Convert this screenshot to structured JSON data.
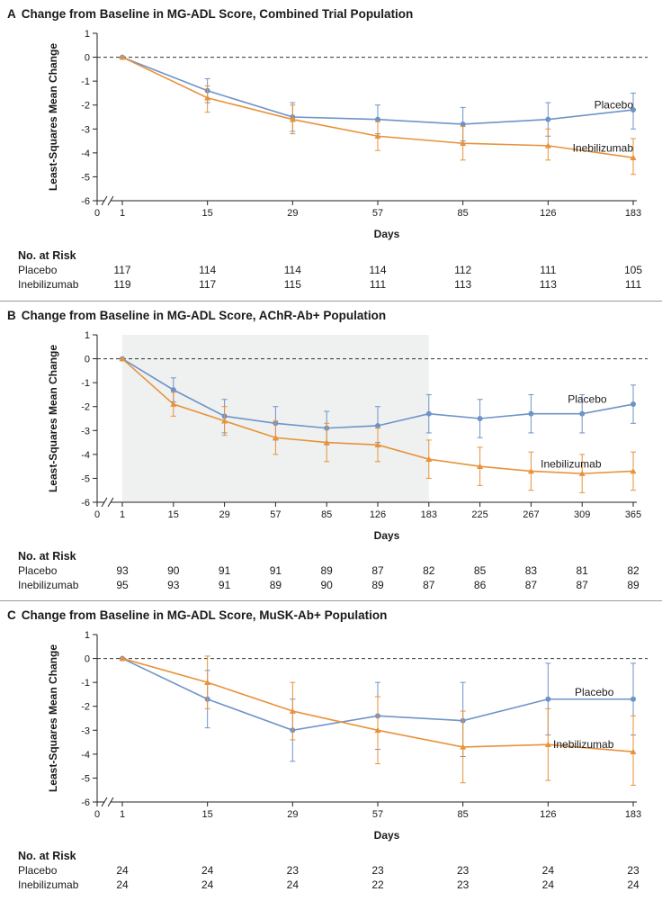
{
  "colors": {
    "placebo": "#6f93c8",
    "inebilizumab": "#e8923a",
    "shade": "#eef1f0",
    "axis": "#222222"
  },
  "common": {
    "ylabel": "Least-Squares Mean Change",
    "xlabel": "Days",
    "risk_title": "No. at Risk",
    "placebo_label": "Placebo",
    "inebilizumab_label": "Inebilizumab"
  },
  "chart_data": [
    {
      "type": "line",
      "letter": "A",
      "title": "Change from Baseline in MG-ADL Score, Combined Trial Population",
      "xlabel": "Days",
      "ylabel": "Least-Squares Mean Change",
      "ylim": [
        -6,
        1
      ],
      "yticks": [
        1,
        0,
        -1,
        -2,
        -3,
        -4,
        -5,
        -6
      ],
      "x": [
        1,
        15,
        29,
        57,
        85,
        126,
        183
      ],
      "x_labels": [
        "1",
        "15",
        "29",
        "57",
        "85",
        "126",
        "183"
      ],
      "zero_label": "0",
      "reference_line": 0,
      "shaded_range": null,
      "series": [
        {
          "name": "Placebo",
          "marker": "circle",
          "values": [
            0,
            -1.4,
            -2.5,
            -2.6,
            -2.8,
            -2.6,
            -2.2
          ],
          "err_low": [
            0,
            -1.9,
            -3.1,
            -3.2,
            -3.5,
            -3.3,
            -3.0
          ],
          "err_high": [
            0,
            -0.9,
            -1.9,
            -2.0,
            -2.1,
            -1.9,
            -1.5
          ]
        },
        {
          "name": "Inebilizumab",
          "marker": "triangle",
          "values": [
            0,
            -1.7,
            -2.6,
            -3.3,
            -3.6,
            -3.7,
            -4.2
          ],
          "err_low": [
            0,
            -2.3,
            -3.2,
            -3.9,
            -4.3,
            -4.3,
            -4.9
          ],
          "err_high": [
            0,
            -1.2,
            -2.0,
            -2.7,
            -2.9,
            -3.0,
            -3.4
          ]
        }
      ],
      "risk": {
        "placebo": [
          "117",
          "114",
          "114",
          "114",
          "112",
          "111",
          "105"
        ],
        "inebilizumab": [
          "119",
          "117",
          "115",
          "111",
          "113",
          "113",
          "111"
        ]
      },
      "annotations": {
        "placebo_day": 183,
        "placebo_y": -2.0,
        "ineb_day": 183,
        "ineb_y": -3.8
      }
    },
    {
      "type": "line",
      "letter": "B",
      "title": "Change from Baseline in MG-ADL Score, AChR-Ab+ Population",
      "xlabel": "Days",
      "ylabel": "Least-Squares Mean Change",
      "ylim": [
        -6,
        1
      ],
      "yticks": [
        1,
        0,
        -1,
        -2,
        -3,
        -4,
        -5,
        -6
      ],
      "x": [
        1,
        15,
        29,
        57,
        85,
        126,
        183,
        225,
        267,
        309,
        365
      ],
      "x_labels": [
        "1",
        "15",
        "29",
        "57",
        "85",
        "126",
        "183",
        "225",
        "267",
        "309",
        "365"
      ],
      "zero_label": "0",
      "reference_line": 0,
      "shaded_range": [
        1,
        183
      ],
      "series": [
        {
          "name": "Placebo",
          "marker": "circle",
          "values": [
            0,
            -1.3,
            -2.4,
            -2.7,
            -2.9,
            -2.8,
            -2.3,
            -2.5,
            -2.3,
            -2.3,
            -1.9
          ],
          "err_low": [
            0,
            -1.8,
            -3.1,
            -3.4,
            -3.6,
            -3.5,
            -3.1,
            -3.3,
            -3.1,
            -3.1,
            -2.7
          ],
          "err_high": [
            0,
            -0.8,
            -1.7,
            -2.0,
            -2.2,
            -2.0,
            -1.5,
            -1.7,
            -1.5,
            -1.5,
            -1.1
          ]
        },
        {
          "name": "Inebilizumab",
          "marker": "triangle",
          "values": [
            0,
            -1.9,
            -2.6,
            -3.3,
            -3.5,
            -3.6,
            -4.2,
            -4.5,
            -4.7,
            -4.8,
            -4.7
          ],
          "err_low": [
            0,
            -2.4,
            -3.2,
            -4.0,
            -4.3,
            -4.3,
            -5.0,
            -5.3,
            -5.5,
            -5.6,
            -5.5
          ],
          "err_high": [
            0,
            -1.4,
            -2.0,
            -2.6,
            -2.7,
            -2.9,
            -3.4,
            -3.7,
            -3.9,
            -4.0,
            -3.9
          ]
        }
      ],
      "risk": {
        "placebo": [
          "93",
          "90",
          "91",
          "91",
          "89",
          "87",
          "82",
          "85",
          "83",
          "81",
          "82"
        ],
        "inebilizumab": [
          "95",
          "93",
          "91",
          "89",
          "90",
          "89",
          "87",
          "86",
          "87",
          "87",
          "89"
        ]
      },
      "annotations": {
        "placebo_day": 336,
        "placebo_y": -1.7,
        "ineb_day": 330,
        "ineb_y": -4.4
      }
    },
    {
      "type": "line",
      "letter": "C",
      "title": "Change from Baseline in MG-ADL Score, MuSK-Ab+ Population",
      "xlabel": "Days",
      "ylabel": "Least-Squares Mean Change",
      "ylim": [
        -6,
        1
      ],
      "yticks": [
        1,
        0,
        -1,
        -2,
        -3,
        -4,
        -5,
        -6
      ],
      "x": [
        1,
        15,
        29,
        57,
        85,
        126,
        183
      ],
      "x_labels": [
        "1",
        "15",
        "29",
        "57",
        "85",
        "126",
        "183"
      ],
      "zero_label": "0",
      "reference_line": 0,
      "shaded_range": null,
      "series": [
        {
          "name": "Placebo",
          "marker": "circle",
          "values": [
            0,
            -1.7,
            -3.0,
            -2.4,
            -2.6,
            -1.7,
            -1.7
          ],
          "err_low": [
            0,
            -2.9,
            -4.3,
            -3.8,
            -4.1,
            -3.2,
            -3.2
          ],
          "err_high": [
            0,
            -0.5,
            -1.7,
            -1.0,
            -1.0,
            -0.2,
            -0.2
          ]
        },
        {
          "name": "Inebilizumab",
          "marker": "triangle",
          "values": [
            0,
            -1.0,
            -2.2,
            -3.0,
            -3.7,
            -3.6,
            -3.9
          ],
          "err_low": [
            0,
            -2.1,
            -3.4,
            -4.4,
            -5.2,
            -5.1,
            -5.3
          ],
          "err_high": [
            0,
            0.1,
            -1.0,
            -1.6,
            -2.2,
            -2.1,
            -2.4
          ]
        }
      ],
      "risk": {
        "placebo": [
          "24",
          "24",
          "23",
          "23",
          "23",
          "24",
          "23"
        ],
        "inebilizumab": [
          "24",
          "24",
          "24",
          "22",
          "23",
          "24",
          "24"
        ]
      },
      "annotations": {
        "placebo_day": 170,
        "placebo_y": -1.4,
        "ineb_day": 170,
        "ineb_y": -3.6
      }
    }
  ]
}
